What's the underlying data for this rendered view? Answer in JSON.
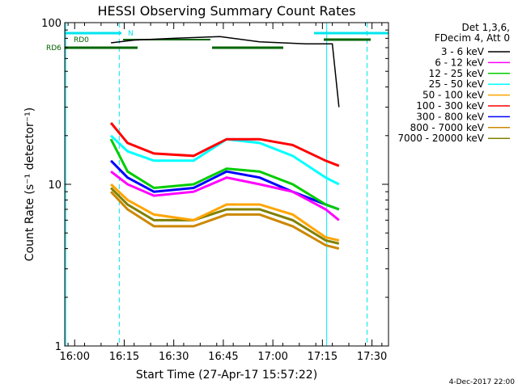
{
  "chart_data": {
    "type": "line",
    "title": "HESSI Observing Summary Count Rates",
    "xlabel": "Start Time (27-Apr-17 15:57:22)",
    "ylabel": "Count Rate (s⁻¹ detector⁻¹)",
    "yscale": "log",
    "ylim": [
      1,
      100
    ],
    "xlim_minutes_after_1600": [
      -3,
      95
    ],
    "x_tick_labels": [
      "16:00",
      "16:15",
      "16:30",
      "16:45",
      "17:00",
      "17:15",
      "17:30"
    ],
    "x_tick_minutes": [
      0,
      15,
      30,
      45,
      60,
      75,
      90
    ],
    "y_tick_labels": [
      "1",
      "10",
      "100"
    ],
    "y_tick_values": [
      1,
      10,
      100
    ],
    "legend_header": [
      "Det 1,3,6,",
      "FDecim 4, Att 0"
    ],
    "legend_placement": "right",
    "flag_labels": [
      "RD0",
      "RD6",
      "N"
    ],
    "series": [
      {
        "name": "3 - 6 keV",
        "color": "#000000",
        "data": [
          [
            11,
            75
          ],
          [
            18,
            78
          ],
          [
            30,
            80
          ],
          [
            44,
            82
          ],
          [
            56,
            76
          ],
          [
            70,
            74
          ],
          [
            78,
            74
          ],
          [
            80,
            30
          ]
        ]
      },
      {
        "name": "6 - 12 keV",
        "color": "#ff00ff",
        "data": [
          [
            11,
            12
          ],
          [
            16,
            10
          ],
          [
            24,
            8.5
          ],
          [
            36,
            9
          ],
          [
            46,
            11
          ],
          [
            56,
            10
          ],
          [
            66,
            9
          ],
          [
            76,
            7
          ],
          [
            80,
            6
          ]
        ]
      },
      {
        "name": "12 - 25 keV",
        "color": "#00cc00",
        "data": [
          [
            11,
            19
          ],
          [
            16,
            12
          ],
          [
            24,
            9.5
          ],
          [
            36,
            10
          ],
          [
            46,
            12.5
          ],
          [
            56,
            12
          ],
          [
            66,
            10
          ],
          [
            76,
            7.5
          ],
          [
            80,
            7
          ]
        ]
      },
      {
        "name": "25 - 50 keV",
        "color": "#00ffff",
        "data": [
          [
            11,
            20
          ],
          [
            16,
            16
          ],
          [
            24,
            14
          ],
          [
            36,
            14
          ],
          [
            46,
            19
          ],
          [
            56,
            18
          ],
          [
            66,
            15
          ],
          [
            76,
            11
          ],
          [
            80,
            10
          ]
        ]
      },
      {
        "name": "50 - 100 keV",
        "color": "#ffa500",
        "data": [
          [
            11,
            10
          ],
          [
            16,
            8
          ],
          [
            24,
            6.5
          ],
          [
            36,
            6
          ],
          [
            46,
            7.5
          ],
          [
            56,
            7.5
          ],
          [
            66,
            6.5
          ],
          [
            76,
            4.7
          ],
          [
            80,
            4.5
          ]
        ]
      },
      {
        "name": "100 - 300 keV",
        "color": "#ff0000",
        "data": [
          [
            11,
            24
          ],
          [
            16,
            18
          ],
          [
            24,
            15.5
          ],
          [
            36,
            15
          ],
          [
            46,
            19
          ],
          [
            56,
            19
          ],
          [
            66,
            17.5
          ],
          [
            76,
            14
          ],
          [
            80,
            13
          ]
        ]
      },
      {
        "name": "300 - 800 keV",
        "color": "#0000ff",
        "data": [
          [
            11,
            14
          ],
          [
            16,
            11
          ],
          [
            24,
            9
          ],
          [
            36,
            9.5
          ],
          [
            46,
            12
          ],
          [
            56,
            11
          ],
          [
            66,
            9
          ],
          [
            76,
            7.5
          ],
          [
            80,
            7
          ]
        ]
      },
      {
        "name": "800 - 7000 keV",
        "color": "#cc8800",
        "data": [
          [
            11,
            9
          ],
          [
            16,
            7
          ],
          [
            24,
            5.5
          ],
          [
            36,
            5.5
          ],
          [
            46,
            6.5
          ],
          [
            56,
            6.5
          ],
          [
            66,
            5.5
          ],
          [
            76,
            4.2
          ],
          [
            80,
            4
          ]
        ]
      },
      {
        "name": "7000 - 20000 keV",
        "color": "#808000",
        "data": [
          [
            11,
            9.5
          ],
          [
            16,
            7.5
          ],
          [
            24,
            6
          ],
          [
            36,
            6
          ],
          [
            46,
            7
          ],
          [
            56,
            7
          ],
          [
            66,
            6
          ],
          [
            76,
            4.5
          ],
          [
            80,
            4.3
          ]
        ]
      }
    ]
  },
  "footer": {
    "date": "4-Dec-2017 22:00"
  }
}
